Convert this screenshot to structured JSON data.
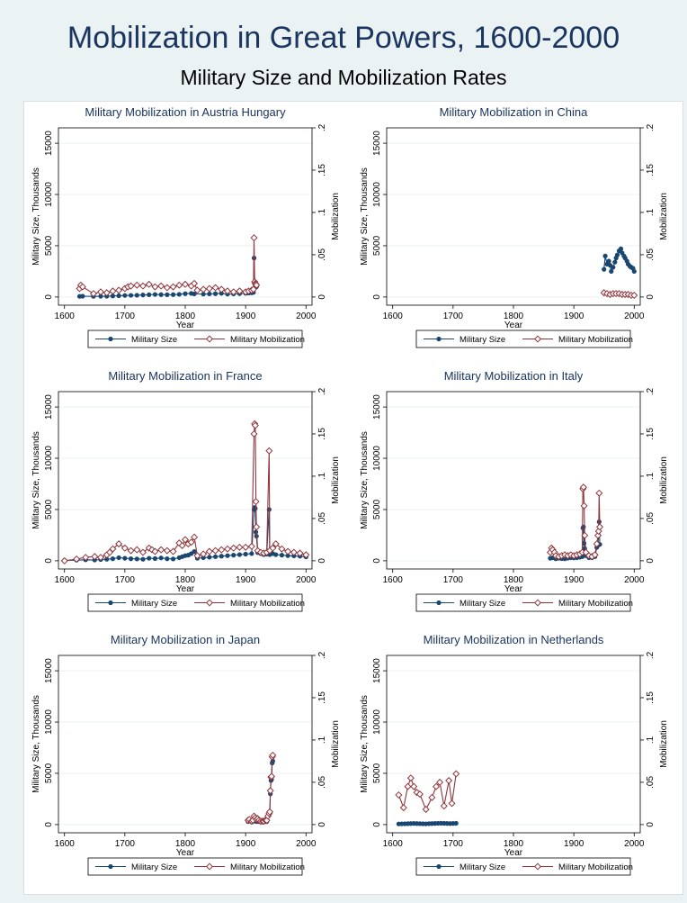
{
  "figure": {
    "title": "Mobilization in Great Powers, 1600-2000",
    "subtitle": "Military Size and Mobilization Rates",
    "colors": {
      "size": "#1a476f",
      "mobilization": "#90353b",
      "title": "#1a3560",
      "background": "#eaf2f3"
    }
  },
  "chart_data": [
    {
      "type": "line",
      "title": "Military Mobilization in Austria Hungary",
      "xlabel": "Year",
      "ylabel": "Military Size, Thousands",
      "y2label": "Mobilization",
      "xlim": [
        1590,
        2010
      ],
      "ylim": [
        -800,
        16500
      ],
      "y2lim": [
        -0.0097,
        0.2
      ],
      "xticks": [
        1600,
        1700,
        1800,
        1900,
        2000
      ],
      "yticks": [
        0,
        5000,
        10000,
        15000
      ],
      "y2ticks": [
        0,
        0.05,
        0.1,
        0.15,
        0.2
      ],
      "y2ticklabels": [
        "0",
        ".05",
        ".1",
        ".15",
        ".2"
      ],
      "legend": [
        "Military Size",
        "Military Mobilization"
      ],
      "series": [
        {
          "name": "Military Size",
          "axis": "left",
          "marker": "circle",
          "x": [
            1625,
            1630,
            1648,
            1660,
            1670,
            1680,
            1690,
            1700,
            1710,
            1720,
            1730,
            1740,
            1750,
            1760,
            1770,
            1780,
            1790,
            1800,
            1810,
            1815,
            1830,
            1840,
            1850,
            1860,
            1870,
            1880,
            1890,
            1900,
            1905,
            1910,
            1913,
            1914,
            1915,
            1916,
            1917,
            1918
          ],
          "y": [
            60,
            80,
            60,
            70,
            80,
            100,
            120,
            150,
            160,
            170,
            200,
            220,
            250,
            230,
            220,
            230,
            260,
            320,
            350,
            300,
            280,
            300,
            320,
            360,
            280,
            300,
            330,
            360,
            380,
            400,
            450,
            3800,
            1300,
            1200,
            1100,
            1000
          ]
        },
        {
          "name": "Military Mobilization",
          "axis": "right",
          "marker": "diamond",
          "x": [
            1625,
            1627,
            1630,
            1648,
            1660,
            1670,
            1680,
            1690,
            1700,
            1705,
            1710,
            1720,
            1730,
            1740,
            1750,
            1760,
            1770,
            1780,
            1790,
            1800,
            1810,
            1815,
            1820,
            1830,
            1840,
            1850,
            1860,
            1870,
            1880,
            1890,
            1900,
            1905,
            1910,
            1913,
            1914,
            1915,
            1916,
            1917,
            1918
          ],
          "y": [
            0.01,
            0.014,
            0.012,
            0.004,
            0.006,
            0.005,
            0.007,
            0.008,
            0.01,
            0.012,
            0.013,
            0.014,
            0.013,
            0.015,
            0.012,
            0.013,
            0.011,
            0.012,
            0.014,
            0.015,
            0.013,
            0.016,
            0.008,
            0.009,
            0.01,
            0.011,
            0.009,
            0.007,
            0.006,
            0.007,
            0.006,
            0.007,
            0.008,
            0.009,
            0.07,
            0.018,
            0.016,
            0.015,
            0.014
          ]
        }
      ]
    },
    {
      "type": "line",
      "title": "Military Mobilization in China",
      "xlabel": "Year",
      "ylabel": "Military Size, Thousands",
      "y2label": "Mobilization",
      "xlim": [
        1590,
        2010
      ],
      "ylim": [
        -800,
        16500
      ],
      "y2lim": [
        -0.0097,
        0.2
      ],
      "xticks": [
        1600,
        1700,
        1800,
        1900,
        2000
      ],
      "yticks": [
        0,
        5000,
        10000,
        15000
      ],
      "y2ticks": [
        0,
        0.05,
        0.1,
        0.15,
        0.2
      ],
      "y2ticklabels": [
        "0",
        ".05",
        ".1",
        ".15",
        ".2"
      ],
      "legend": [
        "Military Size",
        "Military Mobilization"
      ],
      "series": [
        {
          "name": "Military Size",
          "axis": "left",
          "marker": "circle",
          "x": [
            1950,
            1952,
            1955,
            1958,
            1960,
            1962,
            1965,
            1968,
            1970,
            1972,
            1975,
            1978,
            1980,
            1983,
            1985,
            1988,
            1990,
            1993,
            1995,
            1998,
            2000
          ],
          "y": [
            2700,
            4000,
            3200,
            3500,
            3100,
            2500,
            2900,
            3400,
            3800,
            4100,
            4500,
            4700,
            4300,
            4000,
            3800,
            3500,
            3200,
            3000,
            2900,
            2800,
            2500
          ]
        },
        {
          "name": "Military Mobilization",
          "axis": "right",
          "marker": "diamond",
          "x": [
            1950,
            1955,
            1960,
            1965,
            1970,
            1975,
            1980,
            1985,
            1990,
            1995,
            2000
          ],
          "y": [
            0.005,
            0.004,
            0.003,
            0.004,
            0.004,
            0.004,
            0.003,
            0.003,
            0.003,
            0.002,
            0.002
          ]
        }
      ]
    },
    {
      "type": "line",
      "title": "Military Mobilization in France",
      "xlabel": "Year",
      "ylabel": "Military Size, Thousands",
      "y2label": "Mobilization",
      "xlim": [
        1590,
        2010
      ],
      "ylim": [
        -800,
        16500
      ],
      "y2lim": [
        -0.0097,
        0.2
      ],
      "xticks": [
        1600,
        1700,
        1800,
        1900,
        2000
      ],
      "yticks": [
        0,
        5000,
        10000,
        15000
      ],
      "y2ticks": [
        0,
        0.05,
        0.1,
        0.15,
        0.2
      ],
      "y2ticklabels": [
        "0",
        ".05",
        ".1",
        ".15",
        ".2"
      ],
      "legend": [
        "Military Size",
        "Military Mobilization"
      ],
      "series": [
        {
          "name": "Military Size",
          "axis": "left",
          "marker": "circle",
          "x": [
            1600,
            1620,
            1635,
            1650,
            1660,
            1670,
            1680,
            1690,
            1700,
            1710,
            1720,
            1730,
            1740,
            1750,
            1760,
            1770,
            1780,
            1790,
            1795,
            1800,
            1805,
            1810,
            1815,
            1820,
            1830,
            1840,
            1850,
            1860,
            1870,
            1880,
            1890,
            1900,
            1910,
            1914,
            1915,
            1916,
            1917,
            1918,
            1920,
            1925,
            1930,
            1935,
            1939,
            1940,
            1945,
            1950,
            1960,
            1970,
            1980,
            1990,
            2000
          ],
          "y": [
            40,
            60,
            100,
            80,
            120,
            150,
            200,
            300,
            250,
            200,
            180,
            150,
            250,
            220,
            280,
            200,
            180,
            300,
            400,
            500,
            550,
            700,
            900,
            250,
            300,
            350,
            400,
            450,
            500,
            550,
            600,
            650,
            700,
            5000,
            5200,
            5100,
            2800,
            2400,
            800,
            700,
            600,
            650,
            5000,
            600,
            700,
            600,
            550,
            500,
            480,
            450,
            380
          ]
        },
        {
          "name": "Military Mobilization",
          "axis": "right",
          "marker": "diamond",
          "x": [
            1600,
            1620,
            1635,
            1650,
            1660,
            1670,
            1675,
            1680,
            1690,
            1700,
            1710,
            1720,
            1730,
            1740,
            1745,
            1750,
            1760,
            1770,
            1780,
            1790,
            1795,
            1800,
            1805,
            1810,
            1815,
            1820,
            1830,
            1840,
            1850,
            1860,
            1870,
            1880,
            1890,
            1900,
            1910,
            1914,
            1915,
            1916,
            1917,
            1918,
            1920,
            1925,
            1930,
            1935,
            1939,
            1940,
            1945,
            1950,
            1960,
            1970,
            1980,
            1990,
            2000
          ],
          "y": [
            0.0,
            0.002,
            0.004,
            0.005,
            0.004,
            0.007,
            0.01,
            0.014,
            0.02,
            0.015,
            0.012,
            0.013,
            0.01,
            0.015,
            0.013,
            0.011,
            0.013,
            0.012,
            0.011,
            0.021,
            0.018,
            0.025,
            0.02,
            0.022,
            0.028,
            0.006,
            0.008,
            0.011,
            0.012,
            0.013,
            0.014,
            0.015,
            0.016,
            0.016,
            0.017,
            0.15,
            0.162,
            0.16,
            0.07,
            0.04,
            0.012,
            0.01,
            0.009,
            0.01,
            0.13,
            0.012,
            0.015,
            0.02,
            0.014,
            0.011,
            0.01,
            0.009,
            0.007
          ]
        }
      ]
    },
    {
      "type": "line",
      "title": "Military Mobilization in Italy",
      "xlabel": "Year",
      "ylabel": "Military Size, Thousands",
      "y2label": "Mobilization",
      "xlim": [
        1590,
        2010
      ],
      "ylim": [
        -800,
        16500
      ],
      "y2lim": [
        -0.0097,
        0.2
      ],
      "xticks": [
        1600,
        1700,
        1800,
        1900,
        2000
      ],
      "yticks": [
        0,
        5000,
        10000,
        15000
      ],
      "y2ticks": [
        0,
        0.05,
        0.1,
        0.15,
        0.2
      ],
      "y2ticklabels": [
        "0",
        ".05",
        ".1",
        ".15",
        ".2"
      ],
      "legend": [
        "Military Size",
        "Military Mobilization"
      ],
      "series": [
        {
          "name": "Military Size",
          "axis": "left",
          "marker": "circle",
          "x": [
            1861,
            1865,
            1870,
            1875,
            1880,
            1885,
            1890,
            1895,
            1900,
            1905,
            1910,
            1914,
            1915,
            1916,
            1917,
            1918,
            1920,
            1925,
            1930,
            1935,
            1938,
            1940,
            1941,
            1942,
            1943
          ],
          "y": [
            250,
            300,
            200,
            250,
            220,
            200,
            260,
            300,
            280,
            300,
            350,
            400,
            3200,
            3300,
            1700,
            1200,
            500,
            300,
            300,
            400,
            1300,
            1500,
            2500,
            3800,
            1600
          ]
        },
        {
          "name": "Military Mobilization",
          "axis": "right",
          "marker": "diamond",
          "x": [
            1861,
            1863,
            1865,
            1868,
            1870,
            1875,
            1880,
            1885,
            1890,
            1895,
            1900,
            1905,
            1910,
            1914,
            1915,
            1916,
            1917,
            1918,
            1920,
            1925,
            1930,
            1935,
            1938,
            1940,
            1941,
            1942,
            1943
          ],
          "y": [
            0.01,
            0.015,
            0.013,
            0.01,
            0.006,
            0.005,
            0.006,
            0.007,
            0.006,
            0.007,
            0.006,
            0.007,
            0.008,
            0.01,
            0.085,
            0.087,
            0.065,
            0.03,
            0.01,
            0.006,
            0.005,
            0.007,
            0.02,
            0.03,
            0.035,
            0.08,
            0.04
          ]
        }
      ]
    },
    {
      "type": "line",
      "title": "Military Mobilization in Japan",
      "xlabel": "Year",
      "ylabel": "Military Size, Thousands",
      "y2label": "Mobilization",
      "xlim": [
        1590,
        2010
      ],
      "ylim": [
        -800,
        16500
      ],
      "y2lim": [
        -0.0097,
        0.2
      ],
      "xticks": [
        1600,
        1700,
        1800,
        1900,
        2000
      ],
      "yticks": [
        0,
        5000,
        10000,
        15000
      ],
      "y2ticks": [
        0,
        0.05,
        0.1,
        0.15,
        0.2
      ],
      "y2ticklabels": [
        "0",
        ".05",
        ".1",
        ".15",
        ".2"
      ],
      "legend": [
        "Military Size",
        "Military Mobilization"
      ],
      "series": [
        {
          "name": "Military Size",
          "axis": "left",
          "marker": "circle",
          "x": [
            1904,
            1906,
            1910,
            1912,
            1914,
            1916,
            1918,
            1920,
            1922,
            1925,
            1928,
            1930,
            1933,
            1935,
            1937,
            1939,
            1940,
            1941,
            1942,
            1943,
            1944,
            1945
          ],
          "y": [
            300,
            400,
            250,
            300,
            400,
            350,
            300,
            350,
            300,
            250,
            250,
            250,
            300,
            300,
            800,
            1000,
            1200,
            3000,
            4300,
            4400,
            6000,
            6200
          ]
        },
        {
          "name": "Military Mobilization",
          "axis": "right",
          "marker": "diamond",
          "x": [
            1904,
            1906,
            1910,
            1912,
            1914,
            1916,
            1918,
            1920,
            1922,
            1925,
            1928,
            1930,
            1933,
            1935,
            1937,
            1939,
            1940,
            1941,
            1942,
            1943,
            1944,
            1945
          ],
          "y": [
            0.005,
            0.006,
            0.004,
            0.005,
            0.01,
            0.008,
            0.006,
            0.007,
            0.005,
            0.004,
            0.004,
            0.004,
            0.005,
            0.005,
            0.01,
            0.013,
            0.015,
            0.04,
            0.056,
            0.057,
            0.08,
            0.082
          ]
        }
      ]
    },
    {
      "type": "line",
      "title": "Military Mobilization in Netherlands",
      "xlabel": "Year",
      "ylabel": "Military Size, Thousands",
      "y2label": "Mobilization",
      "xlim": [
        1590,
        2010
      ],
      "ylim": [
        -800,
        16500
      ],
      "y2lim": [
        -0.0097,
        0.2
      ],
      "xticks": [
        1600,
        1700,
        1800,
        1900,
        2000
      ],
      "yticks": [
        0,
        5000,
        10000,
        15000
      ],
      "y2ticks": [
        0,
        0.05,
        0.1,
        0.15,
        0.2
      ],
      "y2ticklabels": [
        "0",
        ".05",
        ".1",
        ".15",
        ".2"
      ],
      "legend": [
        "Military Size",
        "Military Mobilization"
      ],
      "series": [
        {
          "name": "Military Size",
          "axis": "left",
          "marker": "circle",
          "x": [
            1610,
            1615,
            1620,
            1625,
            1630,
            1635,
            1640,
            1645,
            1650,
            1655,
            1660,
            1665,
            1670,
            1675,
            1680,
            1685,
            1690,
            1695,
            1700,
            1705
          ],
          "y": [
            60,
            70,
            80,
            90,
            100,
            110,
            100,
            90,
            80,
            70,
            90,
            100,
            110,
            120,
            130,
            120,
            110,
            100,
            110,
            120
          ]
        },
        {
          "name": "Military Mobilization",
          "axis": "right",
          "marker": "diamond",
          "x": [
            1610,
            1618,
            1625,
            1630,
            1635,
            1640,
            1645,
            1655,
            1665,
            1672,
            1678,
            1685,
            1693,
            1698,
            1705
          ],
          "y": [
            0.035,
            0.02,
            0.045,
            0.055,
            0.045,
            0.038,
            0.036,
            0.018,
            0.032,
            0.045,
            0.05,
            0.022,
            0.052,
            0.025,
            0.06
          ]
        }
      ]
    }
  ]
}
